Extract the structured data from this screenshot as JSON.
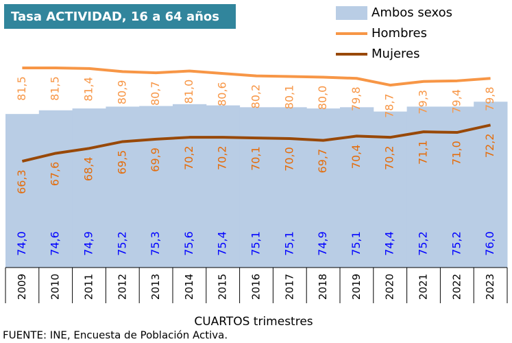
{
  "chart_data": {
    "type": "line",
    "title": "Tasa ACTIVIDAD, 16 a 64 años",
    "x_label": "CUARTOS trimestres",
    "source": "FUENTE: INE, Encuesta de Población Activa.",
    "categories": [
      "2009",
      "2010",
      "2011",
      "2012",
      "2013",
      "2014",
      "2015",
      "2016",
      "2017",
      "2018",
      "2019",
      "2020",
      "2021",
      "2022",
      "2023"
    ],
    "ylim": [
      49,
      92
    ],
    "legend": "top-right",
    "series": [
      {
        "name": "Ambos sexos",
        "type": "area",
        "color": "#b9cde5",
        "label_color": "#0000ff",
        "values": [
          74.0,
          74.6,
          74.9,
          75.2,
          75.3,
          75.6,
          75.4,
          75.1,
          75.1,
          74.9,
          75.1,
          74.4,
          75.2,
          75.2,
          76.0
        ],
        "value_labels": [
          "74,0",
          "74,6",
          "74,9",
          "75,2",
          "75,3",
          "75,6",
          "75,4",
          "75,1",
          "75,1",
          "74,9",
          "75,1",
          "74,4",
          "75,2",
          "75,2",
          "76,0"
        ]
      },
      {
        "name": "Hombres",
        "type": "line",
        "color": "#f79646",
        "label_color": "#f79646",
        "values": [
          81.5,
          81.5,
          81.4,
          80.9,
          80.7,
          81.0,
          80.6,
          80.2,
          80.1,
          80.0,
          79.8,
          78.7,
          79.3,
          79.4,
          79.8
        ],
        "value_labels": [
          "81,5",
          "81,5",
          "81,4",
          "80,9",
          "80,7",
          "81,0",
          "80,6",
          "80,2",
          "80,1",
          "80,0",
          "79,8",
          "78,7",
          "79,3",
          "79,4",
          "79,8"
        ]
      },
      {
        "name": "Mujeres",
        "type": "line",
        "color": "#984807",
        "label_color": "#e46c0a",
        "values": [
          66.3,
          67.6,
          68.4,
          69.5,
          69.9,
          70.2,
          70.2,
          70.1,
          70.0,
          69.7,
          70.4,
          70.2,
          71.1,
          71.0,
          72.2
        ],
        "value_labels": [
          "66,3",
          "67,6",
          "68,4",
          "69,5",
          "69,9",
          "70,2",
          "70,2",
          "70,1",
          "70,0",
          "69,7",
          "70,4",
          "70,2",
          "71,1",
          "71,0",
          "72,2"
        ]
      }
    ]
  }
}
